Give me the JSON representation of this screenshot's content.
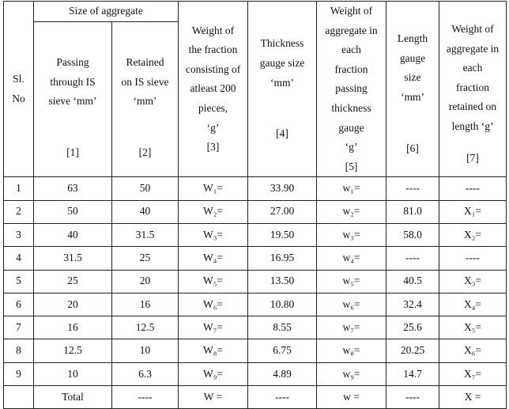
{
  "header": {
    "sl_no": [
      "Sl.",
      "No"
    ],
    "size_group": "Size of aggregate",
    "passing": [
      "Passing",
      "through IS",
      "sieve ‘mm’"
    ],
    "passing_num": "[1]",
    "retained": [
      "Retained",
      "on IS sieve",
      "‘mm’"
    ],
    "retained_num": "[2]",
    "weight_fraction": [
      "Weight of",
      "the fraction",
      "consisting of",
      "atleast 200",
      "pieces,",
      "‘g’"
    ],
    "weight_fraction_num": "[3]",
    "thickness": [
      "Thickness",
      "gauge size",
      "‘mm’"
    ],
    "thickness_num": "[4]",
    "weight_passing": [
      "Weight of",
      "aggregate in",
      "each",
      "fraction",
      "passing",
      "thickness",
      "gauge",
      "‘g’"
    ],
    "weight_passing_num": "[5]",
    "length": [
      "Length",
      "gauge",
      "size",
      "‘mm’"
    ],
    "length_num": "[6]",
    "weight_retained": [
      "Weight of",
      "aggregate in",
      "each",
      "fraction",
      "retained on",
      "length ‘g’"
    ],
    "weight_retained_num": "[7]"
  },
  "rows": [
    {
      "sl": "1",
      "passing": "63",
      "retained": "50",
      "weight": "W₁=",
      "thickness": "33.90",
      "w_pass": "w₁=",
      "length": "----",
      "x": "----"
    },
    {
      "sl": "2",
      "passing": "50",
      "retained": "40",
      "weight": "W₂=",
      "thickness": "27.00",
      "w_pass": "w₂=",
      "length": "81.0",
      "x": "X₁="
    },
    {
      "sl": "3",
      "passing": "40",
      "retained": "31.5",
      "weight": "W₃=",
      "thickness": "19.50",
      "w_pass": "w₃=",
      "length": "58.0",
      "x": "X₂="
    },
    {
      "sl": "4",
      "passing": "31.5",
      "retained": "25",
      "weight": "W₄=",
      "thickness": "16.95",
      "w_pass": "w₄=",
      "length": "----",
      "x": "----"
    },
    {
      "sl": "5",
      "passing": "25",
      "retained": "20",
      "weight": "W₅=",
      "thickness": "13.50",
      "w_pass": "w₅=",
      "length": "40.5",
      "x": "X₃="
    },
    {
      "sl": "6",
      "passing": "20",
      "retained": "16",
      "weight": "W₆=",
      "thickness": "10.80",
      "w_pass": "w₆=",
      "length": "32.4",
      "x": "X₄="
    },
    {
      "sl": "7",
      "passing": "16",
      "retained": "12.5",
      "weight": "W₇=",
      "thickness": "8.55",
      "w_pass": "w₇=",
      "length": "25.6",
      "x": "X₅="
    },
    {
      "sl": "8",
      "passing": "12.5",
      "retained": "10",
      "weight": "W₈=",
      "thickness": "6.75",
      "w_pass": "w₈=",
      "length": "20.25",
      "x": "X₆="
    },
    {
      "sl": "9",
      "passing": "10",
      "retained": "6.3",
      "weight": "W₉=",
      "thickness": "4.89",
      "w_pass": "w₉=",
      "length": "14.7",
      "x": "X₇="
    }
  ],
  "total": {
    "label": "Total",
    "retained": "----",
    "weight": "W =",
    "thickness": "----",
    "w_pass": "w =",
    "length": "----",
    "x": "X ="
  }
}
